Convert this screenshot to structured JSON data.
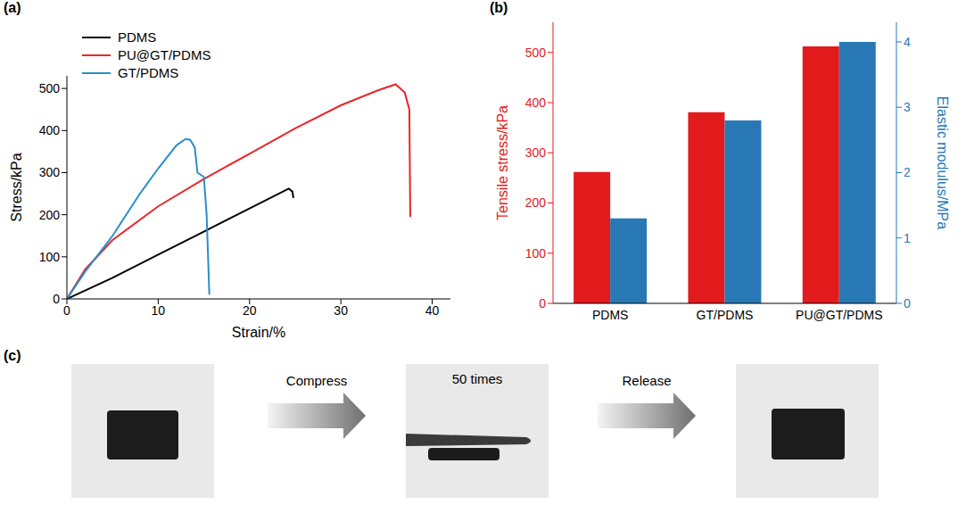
{
  "chart_data": [
    {
      "type": "line",
      "title": "(a)",
      "xlabel": "Strain/%",
      "ylabel": "Stress/kPa",
      "xlim": [
        0,
        42
      ],
      "xticks": [
        0,
        10,
        20,
        30,
        40
      ],
      "ylim": [
        0,
        530
      ],
      "yticks": [
        0,
        100,
        200,
        300,
        400,
        500
      ],
      "legend": "upper left",
      "series": [
        {
          "name": "PDMS",
          "color": "#000000",
          "x": [
            0,
            5,
            10,
            15,
            20,
            24.3,
            24.7,
            24.8
          ],
          "values": [
            0,
            50,
            105,
            160,
            215,
            262,
            255,
            240
          ]
        },
        {
          "name": "PU@GT/PDMS",
          "color": "#e8262a",
          "x": [
            0,
            2,
            5,
            10,
            15,
            20,
            25,
            30,
            34,
            36,
            37,
            37.5,
            37.6
          ],
          "values": [
            0,
            70,
            140,
            220,
            285,
            345,
            405,
            460,
            495,
            510,
            490,
            450,
            195
          ]
        },
        {
          "name": "GT/PDMS",
          "color": "#2a8fc8",
          "x": [
            0,
            2,
            5,
            8,
            10,
            12,
            13,
            13.5,
            14,
            14.3,
            15,
            15.3,
            15.6
          ],
          "values": [
            0,
            65,
            150,
            250,
            310,
            365,
            380,
            378,
            360,
            300,
            290,
            200,
            10
          ]
        }
      ]
    },
    {
      "type": "bar",
      "title": "(b)",
      "categories": [
        "PDMS",
        "GT/PDMS",
        "PU@GT/PDMS"
      ],
      "ylim": [
        0,
        560
      ],
      "yticks": [
        0,
        100,
        200,
        300,
        400,
        500
      ],
      "y2lim": [
        0,
        4.3
      ],
      "y2ticks": [
        0,
        1,
        2,
        3,
        4
      ],
      "series": [
        {
          "name": "Tensile stress/kPa",
          "color": "#e31a1c",
          "values": [
            262,
            381,
            512
          ]
        },
        {
          "name": "Elastic modulus/MPa",
          "color": "#2878b5",
          "values": [
            1.3,
            2.8,
            4.0
          ],
          "axis": "y2"
        }
      ]
    },
    {
      "type": "diagram",
      "title": "(c)",
      "arrows": [
        "Compress",
        "Release"
      ],
      "annotation": "50 times"
    }
  ]
}
